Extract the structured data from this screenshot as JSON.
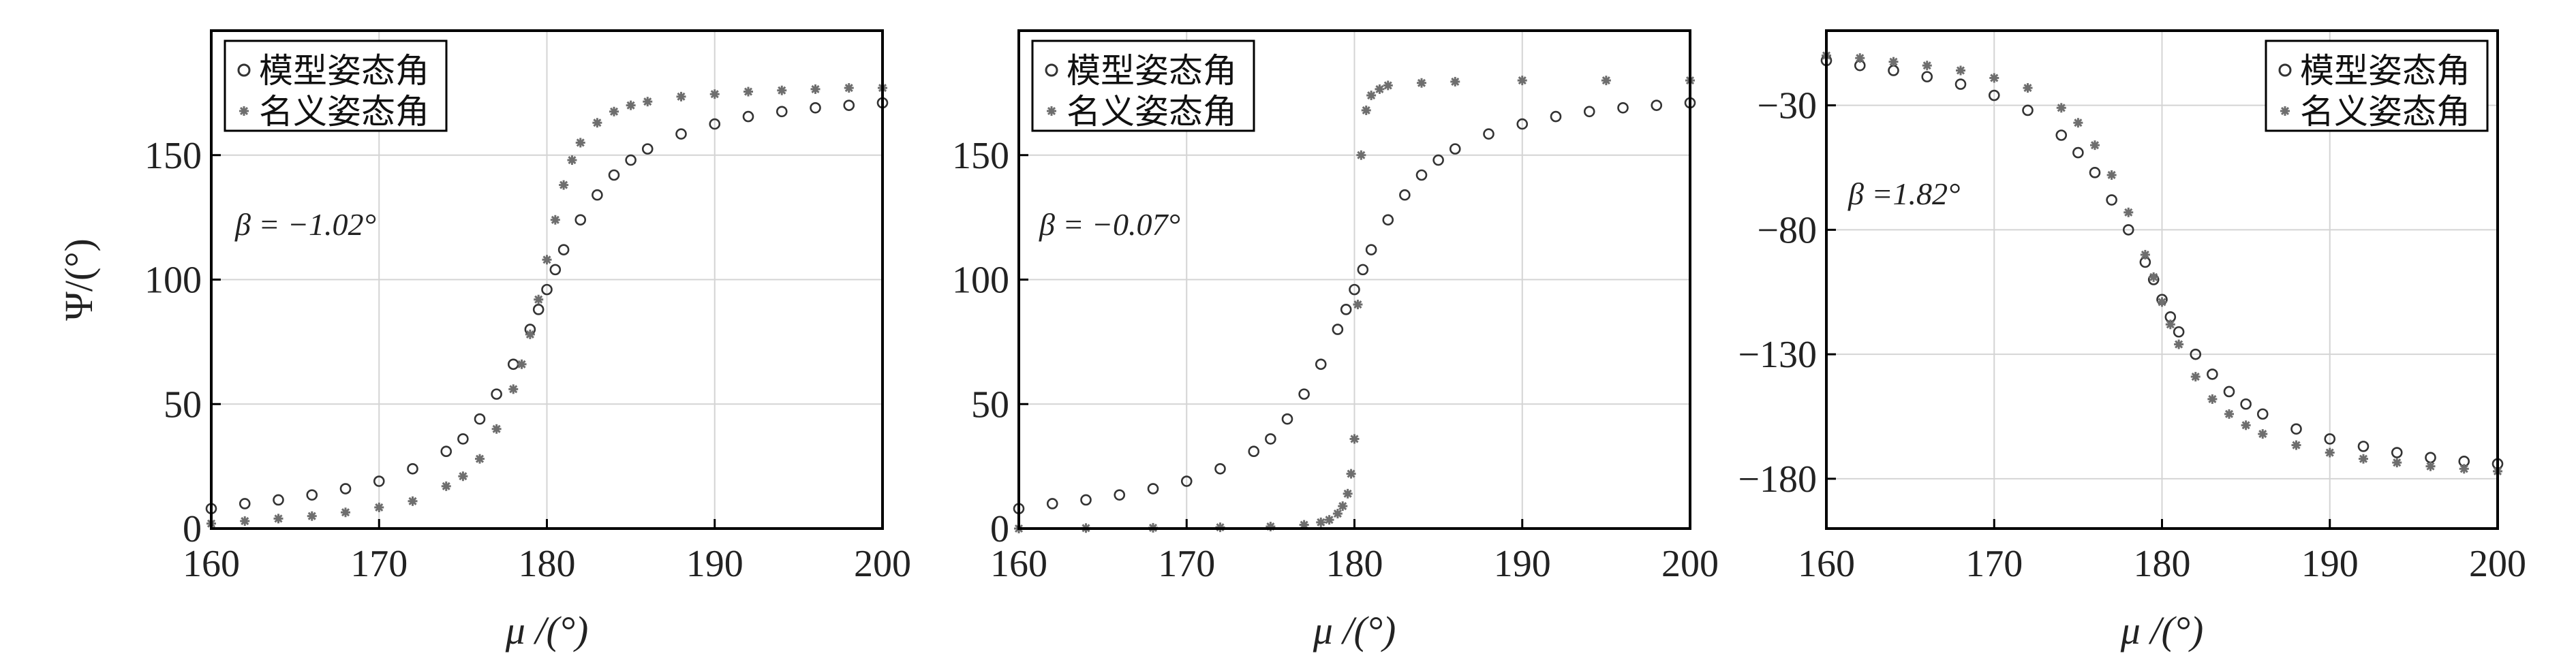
{
  "chart_data": [
    {
      "type": "scatter",
      "ylabel": "Ψ/(°)",
      "xlabel": "μ /(°)",
      "xlim": [
        160,
        200
      ],
      "ylim": [
        0,
        200
      ],
      "xticks": [
        160,
        170,
        180,
        190,
        200
      ],
      "yticks": [
        0,
        50,
        100,
        150
      ],
      "grid": true,
      "legend_position": "top-left",
      "annotation": "β = −1.02°",
      "series": [
        {
          "name": "模型姿态角",
          "marker": "circle",
          "color": "#333333",
          "x": [
            160,
            162,
            164,
            166,
            168,
            170,
            172,
            174,
            175,
            176,
            177,
            178,
            179,
            179.5,
            180,
            180.5,
            181,
            182,
            183,
            184,
            185,
            186,
            188,
            190,
            192,
            194,
            196,
            198,
            200
          ],
          "y": [
            8,
            10,
            11.5,
            13.5,
            16,
            19,
            24,
            31,
            36,
            44,
            54,
            66,
            80,
            88,
            96,
            104,
            112,
            124,
            134,
            142,
            148,
            152.5,
            158.5,
            162.5,
            165.5,
            167.5,
            169,
            170,
            171
          ]
        },
        {
          "name": "名义姿态角",
          "marker": "asterisk",
          "color": "#6e6e6e",
          "x": [
            160,
            162,
            164,
            166,
            168,
            170,
            172,
            174,
            175,
            176,
            177,
            178,
            178.5,
            179,
            179.5,
            180,
            180.5,
            181,
            181.5,
            182,
            183,
            184,
            185,
            186,
            188,
            190,
            192,
            194,
            196,
            198,
            200
          ],
          "y": [
            2,
            3,
            4,
            5,
            6.5,
            8.5,
            11,
            17,
            21,
            28,
            40,
            56,
            66,
            78,
            92,
            108,
            124,
            138,
            148,
            155,
            163,
            167.5,
            170,
            171.5,
            173.5,
            174.5,
            175.5,
            176,
            176.5,
            177,
            177
          ]
        }
      ]
    },
    {
      "type": "scatter",
      "ylabel": "",
      "xlabel": "μ /(°)",
      "xlim": [
        160,
        200
      ],
      "ylim": [
        0,
        200
      ],
      "xticks": [
        160,
        170,
        180,
        190,
        200
      ],
      "yticks": [
        0,
        50,
        100,
        150
      ],
      "grid": true,
      "legend_position": "top-left",
      "annotation": "β = −0.07°",
      "series": [
        {
          "name": "模型姿态角",
          "marker": "circle",
          "color": "#333333",
          "x": [
            160,
            162,
            164,
            166,
            168,
            170,
            172,
            174,
            175,
            176,
            177,
            178,
            179,
            179.5,
            180,
            180.5,
            181,
            182,
            183,
            184,
            185,
            186,
            188,
            190,
            192,
            194,
            196,
            198,
            200
          ],
          "y": [
            8,
            10,
            11.5,
            13.5,
            16,
            19,
            24,
            31,
            36,
            44,
            54,
            66,
            80,
            88,
            96,
            104,
            112,
            124,
            134,
            142,
            148,
            152.5,
            158.5,
            162.5,
            165.5,
            167.5,
            169,
            170,
            171
          ]
        },
        {
          "name": "名义姿态角",
          "marker": "asterisk",
          "color": "#6e6e6e",
          "x": [
            160,
            164,
            168,
            172,
            175,
            177,
            178,
            178.5,
            179,
            179.3,
            179.6,
            179.8,
            180,
            180.2,
            180.4,
            180.7,
            181,
            181.5,
            182,
            184,
            186,
            190,
            195,
            200
          ],
          "y": [
            0,
            0.2,
            0.3,
            0.5,
            0.8,
            1.5,
            2.5,
            3.5,
            6,
            9,
            14,
            22,
            36,
            90,
            150,
            168,
            174,
            176.5,
            178,
            179,
            179.5,
            180,
            180,
            180
          ]
        }
      ]
    },
    {
      "type": "scatter",
      "ylabel": "",
      "xlabel": "μ /(°)",
      "xlim": [
        160,
        200
      ],
      "ylim": [
        -200,
        0
      ],
      "xticks": [
        160,
        170,
        180,
        190,
        200
      ],
      "yticks": [
        -30,
        -80,
        -130,
        -180
      ],
      "grid": true,
      "legend_position": "top-right",
      "annotation": "β =1.82°",
      "series": [
        {
          "name": "模型姿态角",
          "marker": "circle",
          "color": "#333333",
          "x": [
            160,
            162,
            164,
            166,
            168,
            170,
            172,
            174,
            175,
            176,
            177,
            178,
            179,
            179.5,
            180,
            180.5,
            181,
            182,
            183,
            184,
            185,
            186,
            188,
            190,
            192,
            194,
            196,
            198,
            200
          ],
          "y": [
            -12,
            -14,
            -16,
            -18.5,
            -21.5,
            -26,
            -32,
            -42,
            -49,
            -57,
            -68,
            -80,
            -93,
            -100,
            -108,
            -115,
            -121,
            -130,
            -138,
            -145,
            -150,
            -154,
            -160,
            -164,
            -167,
            -169.5,
            -171.5,
            -173,
            -174
          ]
        },
        {
          "name": "名义姿态角",
          "marker": "asterisk",
          "color": "#6e6e6e",
          "x": [
            160,
            162,
            164,
            166,
            168,
            170,
            172,
            174,
            175,
            176,
            177,
            178,
            179,
            179.5,
            180,
            180.5,
            181,
            182,
            183,
            184,
            185,
            186,
            188,
            190,
            192,
            194,
            196,
            198,
            200
          ],
          "y": [
            -10,
            -11,
            -12.5,
            -14,
            -16,
            -19,
            -23,
            -31,
            -37,
            -46,
            -58,
            -73,
            -90,
            -99,
            -109,
            -118,
            -126,
            -139,
            -148,
            -154,
            -158.5,
            -162,
            -166.5,
            -169.5,
            -172,
            -173.5,
            -175,
            -176,
            -177
          ]
        }
      ]
    }
  ]
}
